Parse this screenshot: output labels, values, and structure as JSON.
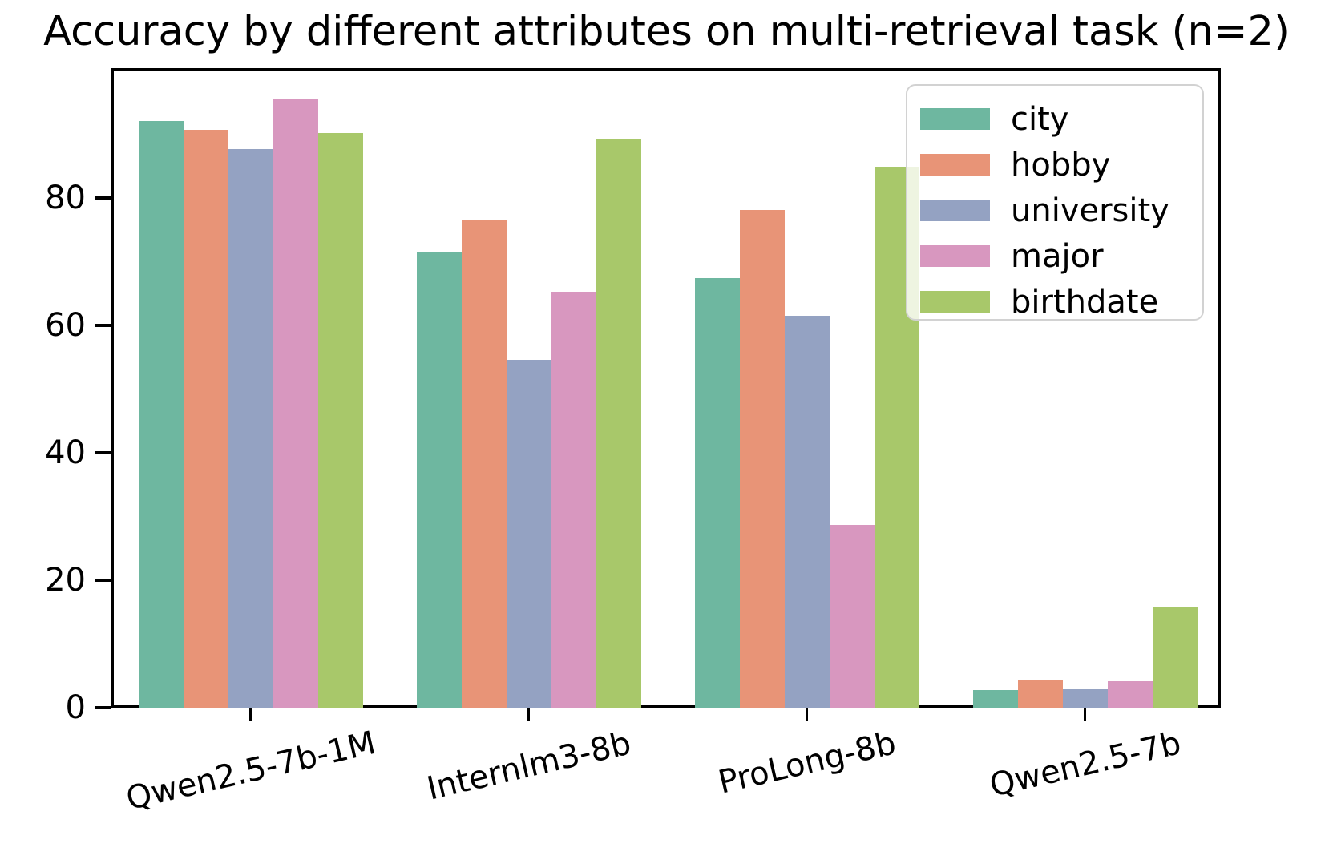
{
  "title": "Accuracy by different attributes on multi-retrieval task (n=2)",
  "chart_data": {
    "type": "bar",
    "title": "Accuracy by different attributes on multi-retrieval task (n=2)",
    "xlabel": "",
    "ylabel": "",
    "categories": [
      "Qwen2.5-7b-1M",
      "Internlm3-8b",
      "ProLong-8b",
      "Qwen2.5-7b"
    ],
    "series": [
      {
        "name": "city",
        "color": "#6eb7a0",
        "values": [
          92.1,
          71.4,
          67.4,
          2.8
        ]
      },
      {
        "name": "hobby",
        "color": "#e89477",
        "values": [
          90.7,
          76.5,
          78.1,
          4.3
        ]
      },
      {
        "name": "university",
        "color": "#94a2c2",
        "values": [
          87.7,
          54.6,
          61.5,
          2.9
        ]
      },
      {
        "name": "major",
        "color": "#d897bf",
        "values": [
          95.5,
          65.3,
          28.7,
          4.2
        ]
      },
      {
        "name": "birthdate",
        "color": "#a8c86a",
        "values": [
          90.2,
          89.3,
          84.9,
          15.8
        ]
      }
    ],
    "yticks": [
      0,
      20,
      40,
      60,
      80
    ],
    "ytick_labels": [
      "0",
      "20",
      "40",
      "60",
      "80"
    ],
    "ylim": [
      0,
      100.4
    ],
    "grid": false,
    "legend_position": "upper right",
    "legend_entries": [
      "city",
      "hobby",
      "university",
      "major",
      "birthdate"
    ]
  }
}
